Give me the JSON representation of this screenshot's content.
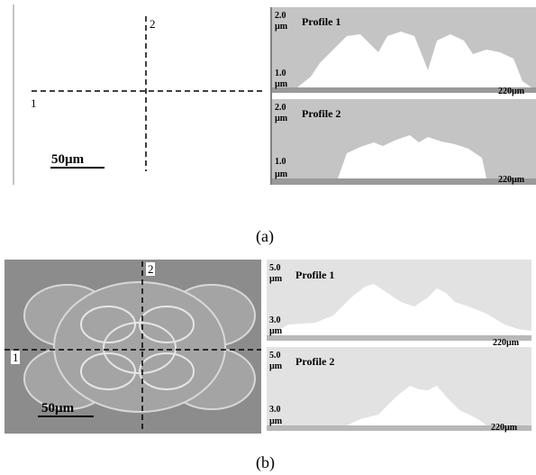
{
  "panels": [
    {
      "caption": "(a)",
      "image": {
        "line_labels": [
          "1",
          "2"
        ],
        "scale_bar": "50µm"
      },
      "profiles": [
        {
          "title": "Profile 1",
          "top": "2.0",
          "bottom": "1.0",
          "unit": "µm",
          "length": "220µm"
        },
        {
          "title": "Profile 2",
          "top": "2.0",
          "bottom": "1.0",
          "unit": "µm",
          "length": "220µm"
        }
      ]
    },
    {
      "caption": "(b)",
      "image": {
        "line_labels": [
          "1",
          "2"
        ],
        "scale_bar": "50µm"
      },
      "profiles": [
        {
          "title": "Profile 1",
          "top": "5.0",
          "bottom": "3.0",
          "unit": "µm",
          "length": "220µm"
        },
        {
          "title": "Profile 2",
          "top": "5.0",
          "bottom": "3.0",
          "unit": "µm",
          "length": "220µm"
        }
      ]
    }
  ]
}
